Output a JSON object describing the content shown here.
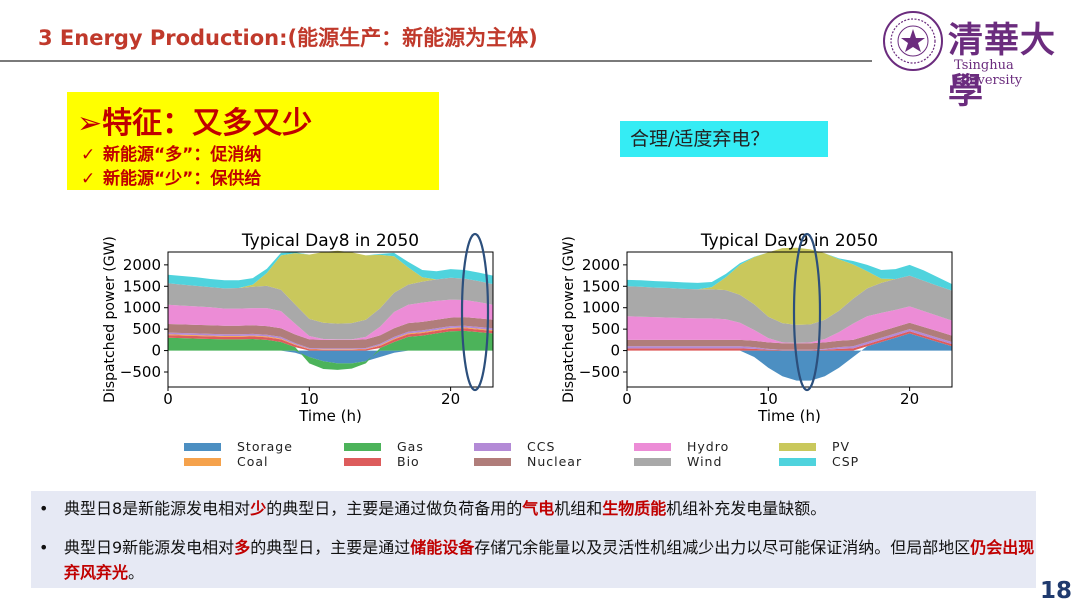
{
  "header": {
    "title": "3 Energy Production:(能源生产：新能源为主体)",
    "logo_cn": "清華大學",
    "logo_en": "Tsinghua University",
    "logo_seal_icon": "tsinghua-seal-icon"
  },
  "feature": {
    "heading_arrow": "➢",
    "heading": "特征：又多又少",
    "items": [
      {
        "check": "✓",
        "text": "新能源“多”：促消纳"
      },
      {
        "check": "✓",
        "text": "新能源“少”：保供给"
      }
    ]
  },
  "question": "合理/适度弃电？",
  "colors": {
    "Storage": "#4c8fc2",
    "Coal": "#f5a24c",
    "Gas": "#4cb35a",
    "Bio": "#dd5c5c",
    "CCS": "#b38ad6",
    "Nuclear": "#b07d7a",
    "Hydro": "#ec8cd6",
    "Wind": "#a9a9a9",
    "PV": "#c9c85c",
    "CSP": "#4fd3dd",
    "ellipse": "#2c4f7c",
    "title": "#c0392b"
  },
  "chart_data": [
    {
      "type": "area",
      "title": "Typical Day8 in 2050",
      "xlabel": "Time (h)",
      "ylabel": "Dispatched power (GW)",
      "xlim": [
        0,
        23
      ],
      "ylim": [
        -850,
        2300
      ],
      "xticks": [
        "0",
        "10",
        "20"
      ],
      "yticks": [
        "2000",
        "1500",
        "1000",
        "500",
        "0",
        "−500"
      ],
      "x": [
        0,
        1,
        2,
        3,
        4,
        5,
        6,
        7,
        8,
        9,
        10,
        11,
        12,
        13,
        14,
        15,
        16,
        17,
        18,
        19,
        20,
        21,
        22,
        23
      ],
      "series": [
        {
          "name": "Storage",
          "values": [
            0,
            0,
            0,
            0,
            0,
            0,
            0,
            0,
            0,
            -50,
            -150,
            -250,
            -300,
            -300,
            -250,
            -150,
            -50,
            0,
            0,
            0,
            0,
            0,
            0,
            0
          ]
        },
        {
          "name": "Gas",
          "values": [
            300,
            290,
            280,
            270,
            260,
            260,
            270,
            250,
            200,
            80,
            -150,
            -180,
            -150,
            -120,
            -50,
            60,
            200,
            320,
            350,
            400,
            450,
            460,
            430,
            400
          ]
        },
        {
          "name": "Bio",
          "values": [
            60,
            60,
            60,
            60,
            60,
            60,
            60,
            60,
            60,
            50,
            30,
            20,
            20,
            20,
            30,
            50,
            60,
            60,
            60,
            60,
            60,
            60,
            60,
            60
          ]
        },
        {
          "name": "Coal",
          "values": [
            20,
            20,
            20,
            20,
            20,
            20,
            20,
            20,
            20,
            15,
            10,
            10,
            10,
            10,
            10,
            15,
            20,
            20,
            20,
            20,
            20,
            20,
            20,
            20
          ]
        },
        {
          "name": "CCS",
          "values": [
            40,
            40,
            40,
            40,
            40,
            40,
            40,
            40,
            40,
            30,
            20,
            20,
            20,
            20,
            20,
            30,
            40,
            40,
            40,
            40,
            40,
            40,
            40,
            40
          ]
        },
        {
          "name": "Nuclear",
          "values": [
            200,
            200,
            200,
            200,
            200,
            200,
            200,
            200,
            200,
            200,
            200,
            200,
            200,
            200,
            200,
            200,
            200,
            200,
            200,
            200,
            200,
            200,
            200,
            200
          ]
        },
        {
          "name": "Hydro",
          "values": [
            450,
            440,
            430,
            420,
            400,
            400,
            400,
            420,
            400,
            250,
            80,
            20,
            10,
            10,
            60,
            200,
            380,
            430,
            450,
            440,
            420,
            400,
            380,
            350
          ]
        },
        {
          "name": "Wind",
          "values": [
            500,
            490,
            480,
            470,
            470,
            480,
            500,
            520,
            500,
            450,
            400,
            380,
            370,
            380,
            400,
            430,
            450,
            470,
            490,
            500,
            510,
            500,
            490,
            480
          ]
        },
        {
          "name": "PV",
          "values": [
            0,
            0,
            0,
            0,
            0,
            0,
            50,
            300,
            800,
            1200,
            1500,
            1650,
            1700,
            1650,
            1500,
            1250,
            850,
            400,
            100,
            0,
            0,
            0,
            0,
            0
          ]
        },
        {
          "name": "CSP",
          "values": [
            200,
            200,
            200,
            190,
            190,
            180,
            150,
            100,
            60,
            20,
            0,
            0,
            0,
            0,
            0,
            20,
            80,
            130,
            170,
            190,
            200,
            200,
            200,
            200
          ]
        }
      ]
    },
    {
      "type": "area",
      "title": "Typical Day9 in 2050",
      "xlabel": "Time (h)",
      "ylabel": "Dispatched power (GW)",
      "xlim": [
        0,
        23
      ],
      "ylim": [
        -850,
        2300
      ],
      "xticks": [
        "0",
        "10",
        "20"
      ],
      "yticks": [
        "2000",
        "1500",
        "1000",
        "500",
        "0",
        "−500"
      ],
      "x": [
        0,
        1,
        2,
        3,
        4,
        5,
        6,
        7,
        8,
        9,
        10,
        11,
        12,
        13,
        14,
        15,
        16,
        17,
        18,
        19,
        20,
        21,
        22,
        23
      ],
      "series": [
        {
          "name": "Storage",
          "values": [
            0,
            0,
            0,
            0,
            0,
            0,
            0,
            0,
            0,
            -150,
            -400,
            -600,
            -700,
            -700,
            -600,
            -400,
            -150,
            100,
            200,
            300,
            400,
            300,
            200,
            100
          ]
        },
        {
          "name": "Gas",
          "values": [
            0,
            0,
            0,
            0,
            0,
            0,
            0,
            0,
            0,
            0,
            0,
            0,
            0,
            0,
            0,
            0,
            0,
            0,
            0,
            0,
            0,
            0,
            0,
            0
          ]
        },
        {
          "name": "Bio",
          "values": [
            50,
            50,
            50,
            50,
            50,
            50,
            50,
            50,
            50,
            40,
            20,
            10,
            10,
            10,
            20,
            40,
            50,
            50,
            50,
            50,
            50,
            50,
            50,
            50
          ]
        },
        {
          "name": "Coal",
          "values": [
            0,
            0,
            0,
            0,
            0,
            0,
            0,
            0,
            0,
            0,
            0,
            0,
            0,
            0,
            0,
            0,
            0,
            0,
            0,
            0,
            0,
            0,
            0,
            0
          ]
        },
        {
          "name": "CCS",
          "values": [
            50,
            50,
            50,
            50,
            50,
            50,
            50,
            50,
            50,
            40,
            20,
            10,
            10,
            10,
            20,
            40,
            50,
            50,
            50,
            50,
            50,
            50,
            50,
            50
          ]
        },
        {
          "name": "Nuclear",
          "values": [
            150,
            150,
            150,
            150,
            150,
            150,
            150,
            150,
            150,
            150,
            150,
            150,
            150,
            150,
            150,
            150,
            150,
            150,
            150,
            150,
            150,
            150,
            150,
            150
          ]
        },
        {
          "name": "Hydro",
          "values": [
            550,
            540,
            530,
            520,
            510,
            500,
            500,
            480,
            400,
            250,
            100,
            20,
            10,
            20,
            80,
            200,
            380,
            450,
            430,
            400,
            380,
            370,
            360,
            350
          ]
        },
        {
          "name": "Wind",
          "values": [
            700,
            700,
            690,
            690,
            680,
            680,
            680,
            680,
            650,
            600,
            500,
            450,
            420,
            420,
            450,
            500,
            580,
            650,
            700,
            720,
            720,
            710,
            700,
            700
          ]
        },
        {
          "name": "PV",
          "values": [
            0,
            0,
            0,
            0,
            0,
            0,
            50,
            300,
            700,
            1100,
            1500,
            1750,
            1800,
            1750,
            1550,
            1200,
            800,
            400,
            100,
            0,
            0,
            0,
            0,
            0
          ]
        },
        {
          "name": "CSP",
          "values": [
            150,
            150,
            150,
            150,
            150,
            150,
            120,
            80,
            40,
            10,
            0,
            0,
            0,
            0,
            0,
            20,
            80,
            150,
            200,
            230,
            250,
            240,
            200,
            150
          ]
        }
      ]
    }
  ],
  "legend": {
    "rows": [
      [
        "Storage",
        "Gas",
        "CCS",
        "Hydro",
        "PV"
      ],
      [
        "Coal",
        "Bio",
        "Nuclear",
        "Wind",
        "CSP"
      ]
    ]
  },
  "bullets": [
    {
      "dot": "•",
      "parts": [
        {
          "t": "典型日8是新能源发电相对",
          "h": false
        },
        {
          "t": "少",
          "h": true
        },
        {
          "t": "的典型日，主要是通过做负荷备用的",
          "h": false
        },
        {
          "t": "气电",
          "h": true
        },
        {
          "t": "机组和",
          "h": false
        },
        {
          "t": "生物质能",
          "h": true
        },
        {
          "t": "机组补充发电量缺额。",
          "h": false
        }
      ]
    },
    {
      "dot": "•",
      "parts": [
        {
          "t": "典型日9新能源发电相对",
          "h": false
        },
        {
          "t": "多",
          "h": true
        },
        {
          "t": "的典型日，主要是通过",
          "h": false
        },
        {
          "t": "储能设备",
          "h": true
        },
        {
          "t": "存储冗余能量以及灵活性机组减少出力以尽可能保证消纳。但局部地区",
          "h": false
        },
        {
          "t": "仍会出现弃风弃光",
          "h": true
        },
        {
          "t": "。",
          "h": false
        }
      ]
    }
  ],
  "page_number": "18"
}
